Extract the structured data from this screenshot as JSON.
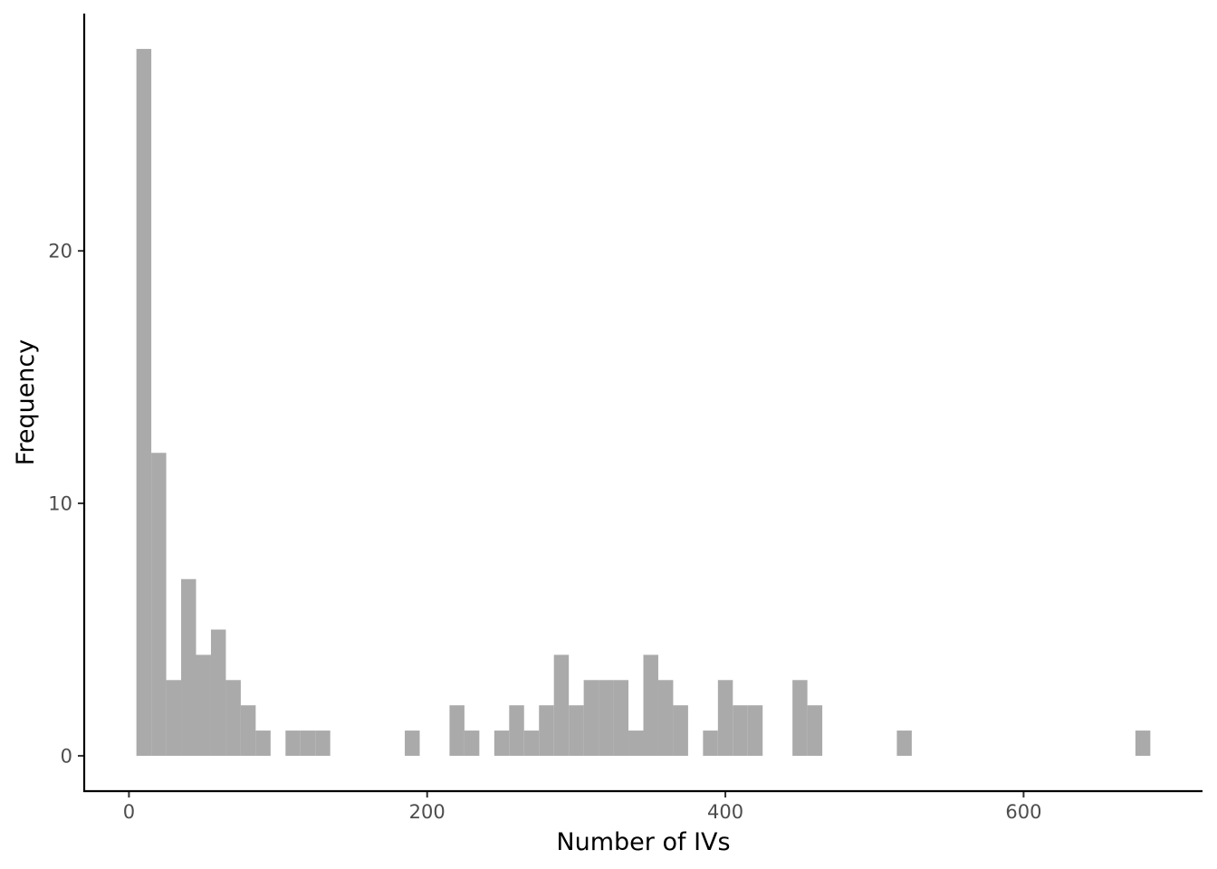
{
  "chart_data": {
    "type": "bar",
    "title": "",
    "xlabel": "Number of IVs",
    "ylabel": "Frequency",
    "bar_color": "#aaaaaa",
    "axis_color": "#000000",
    "tick_label_color": "#4d4d4d",
    "grid": false,
    "legend": "none",
    "xlim": [
      -30,
      720
    ],
    "ylim": [
      -1.4,
      29.4
    ],
    "x_ticks": [
      0,
      200,
      400,
      600
    ],
    "x_tick_labels": [
      "0",
      "200",
      "400",
      "600"
    ],
    "y_ticks": [
      0,
      10,
      20
    ],
    "y_tick_labels": [
      "0",
      "10",
      "20"
    ],
    "bin_width": 10,
    "bins": [
      {
        "x": 10,
        "count": 28
      },
      {
        "x": 20,
        "count": 12
      },
      {
        "x": 30,
        "count": 3
      },
      {
        "x": 40,
        "count": 7
      },
      {
        "x": 50,
        "count": 4
      },
      {
        "x": 60,
        "count": 5
      },
      {
        "x": 70,
        "count": 3
      },
      {
        "x": 80,
        "count": 2
      },
      {
        "x": 90,
        "count": 1
      },
      {
        "x": 110,
        "count": 1
      },
      {
        "x": 120,
        "count": 1
      },
      {
        "x": 130,
        "count": 1
      },
      {
        "x": 190,
        "count": 1
      },
      {
        "x": 220,
        "count": 2
      },
      {
        "x": 230,
        "count": 1
      },
      {
        "x": 250,
        "count": 1
      },
      {
        "x": 260,
        "count": 2
      },
      {
        "x": 270,
        "count": 1
      },
      {
        "x": 280,
        "count": 2
      },
      {
        "x": 290,
        "count": 4
      },
      {
        "x": 300,
        "count": 2
      },
      {
        "x": 310,
        "count": 3
      },
      {
        "x": 320,
        "count": 3
      },
      {
        "x": 330,
        "count": 3
      },
      {
        "x": 340,
        "count": 1
      },
      {
        "x": 350,
        "count": 4
      },
      {
        "x": 360,
        "count": 3
      },
      {
        "x": 370,
        "count": 2
      },
      {
        "x": 390,
        "count": 1
      },
      {
        "x": 400,
        "count": 3
      },
      {
        "x": 410,
        "count": 2
      },
      {
        "x": 420,
        "count": 2
      },
      {
        "x": 450,
        "count": 3
      },
      {
        "x": 460,
        "count": 2
      },
      {
        "x": 520,
        "count": 1
      },
      {
        "x": 680,
        "count": 1
      }
    ]
  }
}
